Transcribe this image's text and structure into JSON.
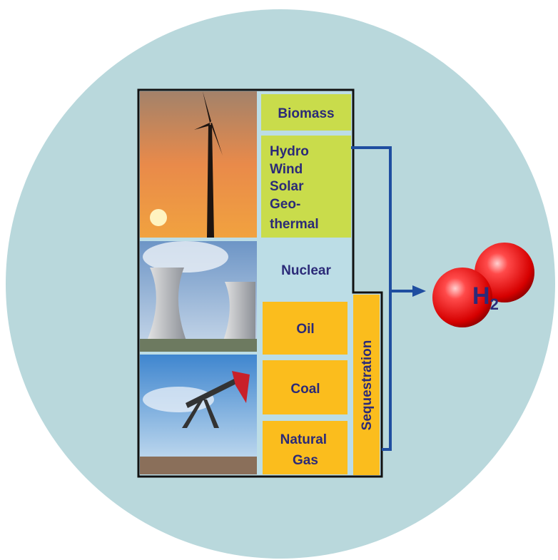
{
  "labels": {
    "biomass": "Biomass",
    "renewables": [
      "Hydro",
      "Wind",
      "Solar",
      "Geo-",
      "thermal"
    ],
    "nuclear": "Nuclear",
    "oil": "Oil",
    "coal": "Coal",
    "natural_gas": [
      "Natural",
      "Gas"
    ],
    "sequestration": "Sequestration"
  },
  "product": {
    "symbol": "H",
    "subscript": "2"
  }
}
